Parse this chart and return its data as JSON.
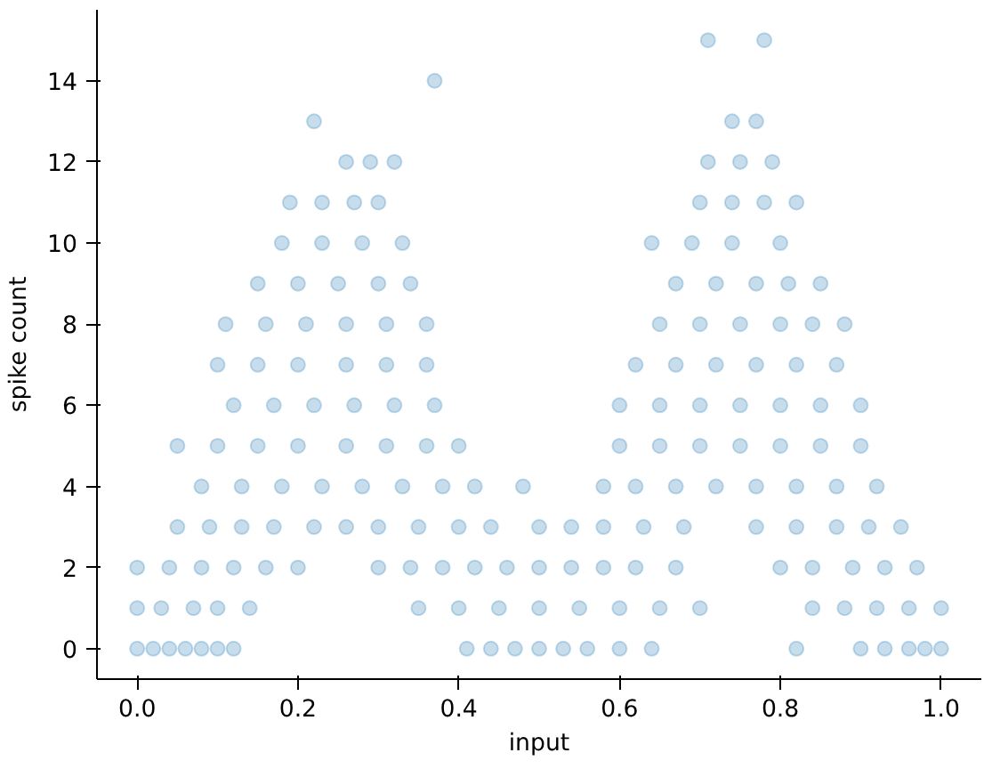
{
  "chart_data": {
    "type": "scatter",
    "xlabel": "input",
    "ylabel": "spike count",
    "xlim": [
      -0.05,
      1.05
    ],
    "ylim": [
      -0.75,
      15.75
    ],
    "xticks": [
      {
        "value": 0,
        "label": "0.0"
      },
      {
        "value": 0.2,
        "label": "0.2"
      },
      {
        "value": 0.4,
        "label": "0.4"
      },
      {
        "value": 0.6,
        "label": "0.6"
      },
      {
        "value": 0.8,
        "label": "0.8"
      },
      {
        "value": 1,
        "label": "1.0"
      }
    ],
    "yticks": [
      0,
      2,
      4,
      6,
      8,
      10,
      12,
      14
    ],
    "marker": "circle",
    "grid": false,
    "series": [
      {
        "color": "#1f77b4",
        "x": [
          0.0,
          0.02,
          0.04,
          0.06,
          0.08,
          0.1,
          0.12,
          0.41,
          0.44,
          0.47,
          0.5,
          0.53,
          0.56,
          0.6,
          0.64,
          0.82,
          0.9,
          0.93,
          0.96,
          0.98,
          1.0,
          0.0,
          0.03,
          0.07,
          0.1,
          0.14,
          0.35,
          0.4,
          0.45,
          0.5,
          0.55,
          0.6,
          0.65,
          0.7,
          0.84,
          0.88,
          0.92,
          0.96,
          1.0,
          0.0,
          0.04,
          0.08,
          0.12,
          0.16,
          0.2,
          0.3,
          0.34,
          0.38,
          0.42,
          0.46,
          0.5,
          0.54,
          0.58,
          0.62,
          0.67,
          0.8,
          0.84,
          0.89,
          0.93,
          0.97,
          0.05,
          0.09,
          0.13,
          0.17,
          0.22,
          0.26,
          0.3,
          0.35,
          0.4,
          0.44,
          0.5,
          0.54,
          0.58,
          0.63,
          0.68,
          0.77,
          0.82,
          0.87,
          0.91,
          0.95,
          0.08,
          0.13,
          0.18,
          0.23,
          0.28,
          0.33,
          0.38,
          0.42,
          0.48,
          0.58,
          0.62,
          0.67,
          0.72,
          0.77,
          0.82,
          0.87,
          0.92,
          0.05,
          0.1,
          0.15,
          0.2,
          0.26,
          0.31,
          0.36,
          0.4,
          0.6,
          0.65,
          0.7,
          0.75,
          0.8,
          0.85,
          0.9,
          0.12,
          0.17,
          0.22,
          0.27,
          0.32,
          0.37,
          0.6,
          0.65,
          0.7,
          0.75,
          0.8,
          0.85,
          0.9,
          0.1,
          0.15,
          0.2,
          0.26,
          0.31,
          0.36,
          0.62,
          0.67,
          0.72,
          0.77,
          0.82,
          0.87,
          0.11,
          0.16,
          0.21,
          0.26,
          0.31,
          0.36,
          0.65,
          0.7,
          0.75,
          0.8,
          0.84,
          0.88,
          0.15,
          0.2,
          0.25,
          0.3,
          0.34,
          0.67,
          0.72,
          0.77,
          0.81,
          0.85,
          0.18,
          0.23,
          0.28,
          0.33,
          0.64,
          0.69,
          0.74,
          0.8,
          0.19,
          0.23,
          0.27,
          0.3,
          0.7,
          0.74,
          0.78,
          0.82,
          0.26,
          0.29,
          0.32,
          0.71,
          0.75,
          0.79,
          0.22,
          0.74,
          0.77,
          0.37,
          0.71,
          0.78
        ],
        "values": [
          0,
          0,
          0,
          0,
          0,
          0,
          0,
          0,
          0,
          0,
          0,
          0,
          0,
          0,
          0,
          0,
          0,
          0,
          0,
          0,
          0,
          1,
          1,
          1,
          1,
          1,
          1,
          1,
          1,
          1,
          1,
          1,
          1,
          1,
          1,
          1,
          1,
          1,
          1,
          2,
          2,
          2,
          2,
          2,
          2,
          2,
          2,
          2,
          2,
          2,
          2,
          2,
          2,
          2,
          2,
          2,
          2,
          2,
          2,
          2,
          3,
          3,
          3,
          3,
          3,
          3,
          3,
          3,
          3,
          3,
          3,
          3,
          3,
          3,
          3,
          3,
          3,
          3,
          3,
          3,
          4,
          4,
          4,
          4,
          4,
          4,
          4,
          4,
          4,
          4,
          4,
          4,
          4,
          4,
          4,
          4,
          4,
          5,
          5,
          5,
          5,
          5,
          5,
          5,
          5,
          5,
          5,
          5,
          5,
          5,
          5,
          5,
          6,
          6,
          6,
          6,
          6,
          6,
          6,
          6,
          6,
          6,
          6,
          6,
          6,
          7,
          7,
          7,
          7,
          7,
          7,
          7,
          7,
          7,
          7,
          7,
          7,
          8,
          8,
          8,
          8,
          8,
          8,
          8,
          8,
          8,
          8,
          8,
          8,
          9,
          9,
          9,
          9,
          9,
          9,
          9,
          9,
          9,
          9,
          10,
          10,
          10,
          10,
          10,
          10,
          10,
          10,
          11,
          11,
          11,
          11,
          11,
          11,
          11,
          11,
          12,
          12,
          12,
          12,
          12,
          12,
          13,
          13,
          13,
          14,
          15,
          15
        ]
      }
    ]
  }
}
